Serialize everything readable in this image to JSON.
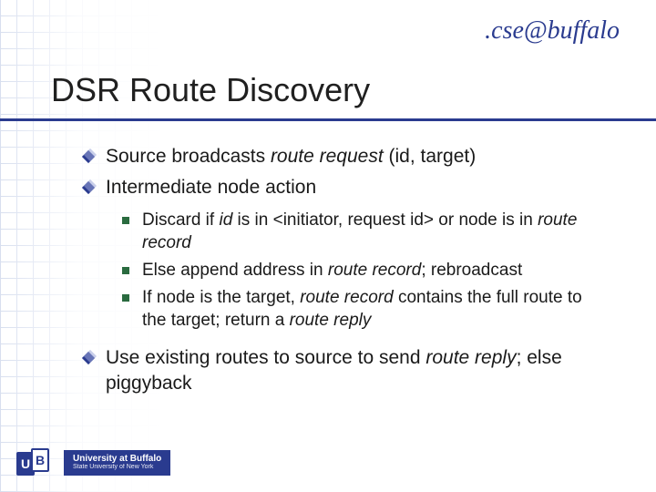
{
  "brand": ".cse@buffalo",
  "title": "DSR Route Discovery",
  "colors": {
    "accent_blue": "#2a3b8f",
    "grid_line": "#d8dfef",
    "sub_bullet_green": "#2a6b3f",
    "text": "#1a1a1a",
    "background": "#ffffff"
  },
  "typography": {
    "title_fontsize_pt": 27,
    "body_fontsize_pt": 16,
    "sub_fontsize_pt": 14,
    "brand_font": "cursive",
    "body_font": "Verdana"
  },
  "bullets": [
    {
      "segments": [
        {
          "t": "Source broadcasts "
        },
        {
          "t": "route request",
          "italic": true
        },
        {
          "t": " (id, target)"
        }
      ]
    },
    {
      "segments": [
        {
          "t": "Intermediate node action"
        }
      ],
      "children": [
        {
          "segments": [
            {
              "t": "Discard if "
            },
            {
              "t": "id",
              "italic": true
            },
            {
              "t": " is in <initiator, request id> or node is in "
            },
            {
              "t": "route record",
              "italic": true
            }
          ]
        },
        {
          "segments": [
            {
              "t": "Else append address in "
            },
            {
              "t": "route record",
              "italic": true
            },
            {
              "t": "; rebroadcast"
            }
          ]
        },
        {
          "segments": [
            {
              "t": "If node is the target, "
            },
            {
              "t": "route record",
              "italic": true
            },
            {
              "t": " contains the full route to the target; return a "
            },
            {
              "t": "route reply",
              "italic": true
            }
          ]
        }
      ]
    },
    {
      "segments": [
        {
          "t": "Use existing routes to source to send "
        },
        {
          "t": "route reply",
          "italic": true
        },
        {
          "t": "; else piggyback"
        }
      ]
    }
  ],
  "footer": {
    "mark_u": "U",
    "mark_b": "B",
    "line1": "University at Buffalo",
    "line2": "State University of New York"
  }
}
